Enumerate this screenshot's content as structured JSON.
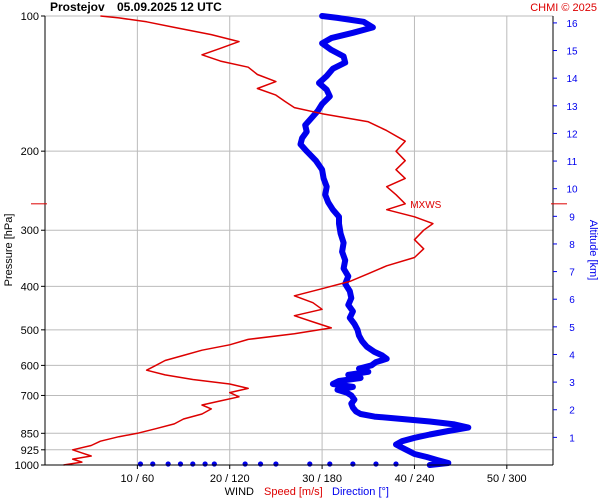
{
  "header": {
    "station": "Prostejov",
    "datetime": "05.09.2025 12 UTC",
    "credit": "CHMI © 2025"
  },
  "chart_data": {
    "type": "line",
    "title": "Prostejov   05.09.2025 12 UTC",
    "ylabel_left": "Pressure [hPa]",
    "ylabel_right": "Altitude [km]",
    "xlabel": "WIND",
    "xlabel_speed": "Speed [m/s]",
    "xlabel_direction": "Direction [°]",
    "xlim_speed": [
      0,
      55
    ],
    "xlim_direction": [
      0,
      330
    ],
    "x_tick_labels": [
      "10 / 60",
      "20 / 120",
      "30 / 180",
      "40 / 240",
      "50 / 300"
    ],
    "x_ticks_speed": [
      10,
      20,
      30,
      40,
      50
    ],
    "pressure_ticks": [
      100,
      200,
      300,
      400,
      500,
      600,
      700,
      850,
      925,
      1000
    ],
    "pressure_tick_labels": [
      "100",
      "200",
      "300",
      "400",
      "500",
      "600",
      "700",
      "850",
      "925",
      "1000"
    ],
    "pressure_range": [
      100,
      1000
    ],
    "pressure_scale": "log",
    "altitude_ticks": [
      1,
      2,
      3,
      4,
      5,
      6,
      7,
      8,
      9,
      10,
      11,
      12,
      13,
      14,
      15,
      16
    ],
    "altitude_tick_labels": [
      "1",
      "2",
      "3",
      "4",
      "5",
      "6",
      "7",
      "8",
      "9",
      "10",
      "11",
      "12",
      "13",
      "14",
      "15",
      "16"
    ],
    "grid": true,
    "colors": {
      "speed": "#dd0000",
      "direction": "#0000ee",
      "grid": "#bbbbbb",
      "axis": "#000000"
    },
    "annotation": {
      "text": "MXWS",
      "pressure": 262,
      "speed": 39
    },
    "speed_profile": [
      {
        "p": 1000,
        "v": 2
      },
      {
        "p": 985,
        "v": 4
      },
      {
        "p": 970,
        "v": 3
      },
      {
        "p": 955,
        "v": 5
      },
      {
        "p": 940,
        "v": 4
      },
      {
        "p": 925,
        "v": 3
      },
      {
        "p": 905,
        "v": 5
      },
      {
        "p": 885,
        "v": 6
      },
      {
        "p": 865,
        "v": 8
      },
      {
        "p": 850,
        "v": 10
      },
      {
        "p": 830,
        "v": 12
      },
      {
        "p": 810,
        "v": 14
      },
      {
        "p": 790,
        "v": 15
      },
      {
        "p": 770,
        "v": 17
      },
      {
        "p": 750,
        "v": 18
      },
      {
        "p": 735,
        "v": 17
      },
      {
        "p": 720,
        "v": 19
      },
      {
        "p": 705,
        "v": 21
      },
      {
        "p": 690,
        "v": 20
      },
      {
        "p": 675,
        "v": 22
      },
      {
        "p": 660,
        "v": 20
      },
      {
        "p": 645,
        "v": 16
      },
      {
        "p": 630,
        "v": 13
      },
      {
        "p": 615,
        "v": 11
      },
      {
        "p": 600,
        "v": 12
      },
      {
        "p": 585,
        "v": 13
      },
      {
        "p": 570,
        "v": 15
      },
      {
        "p": 555,
        "v": 17
      },
      {
        "p": 540,
        "v": 20
      },
      {
        "p": 525,
        "v": 22
      },
      {
        "p": 510,
        "v": 27
      },
      {
        "p": 495,
        "v": 31
      },
      {
        "p": 480,
        "v": 29
      },
      {
        "p": 465,
        "v": 27
      },
      {
        "p": 450,
        "v": 30
      },
      {
        "p": 435,
        "v": 29
      },
      {
        "p": 420,
        "v": 27
      },
      {
        "p": 405,
        "v": 30
      },
      {
        "p": 390,
        "v": 33
      },
      {
        "p": 375,
        "v": 35
      },
      {
        "p": 360,
        "v": 37
      },
      {
        "p": 345,
        "v": 40
      },
      {
        "p": 330,
        "v": 41
      },
      {
        "p": 315,
        "v": 40
      },
      {
        "p": 300,
        "v": 41
      },
      {
        "p": 290,
        "v": 42
      },
      {
        "p": 280,
        "v": 40
      },
      {
        "p": 270,
        "v": 37
      },
      {
        "p": 262,
        "v": 39
      },
      {
        "p": 250,
        "v": 38
      },
      {
        "p": 240,
        "v": 37
      },
      {
        "p": 230,
        "v": 39
      },
      {
        "p": 220,
        "v": 38
      },
      {
        "p": 210,
        "v": 39
      },
      {
        "p": 200,
        "v": 38
      },
      {
        "p": 190,
        "v": 39
      },
      {
        "p": 180,
        "v": 37
      },
      {
        "p": 172,
        "v": 35
      },
      {
        "p": 165,
        "v": 30
      },
      {
        "p": 160,
        "v": 27
      },
      {
        "p": 155,
        "v": 26
      },
      {
        "p": 150,
        "v": 25
      },
      {
        "p": 145,
        "v": 23
      },
      {
        "p": 140,
        "v": 25
      },
      {
        "p": 135,
        "v": 23
      },
      {
        "p": 130,
        "v": 22
      },
      {
        "p": 126,
        "v": 19
      },
      {
        "p": 122,
        "v": 17
      },
      {
        "p": 118,
        "v": 19
      },
      {
        "p": 114,
        "v": 21
      },
      {
        "p": 110,
        "v": 18
      },
      {
        "p": 106,
        "v": 14
      },
      {
        "p": 103,
        "v": 11
      },
      {
        "p": 101,
        "v": 8
      },
      {
        "p": 100,
        "v": 6
      }
    ],
    "direction_profile": [
      {
        "p": 1000,
        "d": 250
      },
      {
        "p": 990,
        "d": 262
      },
      {
        "p": 975,
        "d": 255
      },
      {
        "p": 960,
        "d": 248
      },
      {
        "p": 945,
        "d": 240
      },
      {
        "p": 930,
        "d": 236
      },
      {
        "p": 915,
        "d": 232
      },
      {
        "p": 900,
        "d": 228
      },
      {
        "p": 885,
        "d": 232
      },
      {
        "p": 870,
        "d": 240
      },
      {
        "p": 855,
        "d": 250
      },
      {
        "p": 840,
        "d": 262
      },
      {
        "p": 825,
        "d": 275
      },
      {
        "p": 812,
        "d": 266
      },
      {
        "p": 800,
        "d": 250
      },
      {
        "p": 790,
        "d": 232
      },
      {
        "p": 780,
        "d": 214
      },
      {
        "p": 770,
        "d": 205
      },
      {
        "p": 760,
        "d": 202
      },
      {
        "p": 745,
        "d": 200
      },
      {
        "p": 730,
        "d": 199
      },
      {
        "p": 715,
        "d": 201
      },
      {
        "p": 700,
        "d": 199
      },
      {
        "p": 690,
        "d": 196
      },
      {
        "p": 680,
        "d": 190
      },
      {
        "p": 670,
        "d": 200
      },
      {
        "p": 660,
        "d": 187
      },
      {
        "p": 650,
        "d": 191
      },
      {
        "p": 640,
        "d": 205
      },
      {
        "p": 630,
        "d": 197
      },
      {
        "p": 620,
        "d": 210
      },
      {
        "p": 610,
        "d": 204
      },
      {
        "p": 600,
        "d": 212
      },
      {
        "p": 590,
        "d": 215
      },
      {
        "p": 580,
        "d": 222
      },
      {
        "p": 570,
        "d": 219
      },
      {
        "p": 560,
        "d": 214
      },
      {
        "p": 545,
        "d": 209
      },
      {
        "p": 530,
        "d": 206
      },
      {
        "p": 515,
        "d": 204
      },
      {
        "p": 500,
        "d": 203
      },
      {
        "p": 485,
        "d": 201
      },
      {
        "p": 470,
        "d": 198
      },
      {
        "p": 455,
        "d": 200
      },
      {
        "p": 440,
        "d": 197
      },
      {
        "p": 425,
        "d": 199
      },
      {
        "p": 410,
        "d": 198
      },
      {
        "p": 395,
        "d": 195
      },
      {
        "p": 380,
        "d": 197
      },
      {
        "p": 365,
        "d": 194
      },
      {
        "p": 350,
        "d": 195
      },
      {
        "p": 335,
        "d": 193
      },
      {
        "p": 320,
        "d": 194
      },
      {
        "p": 305,
        "d": 192
      },
      {
        "p": 290,
        "d": 191
      },
      {
        "p": 280,
        "d": 191
      },
      {
        "p": 270,
        "d": 187
      },
      {
        "p": 260,
        "d": 184
      },
      {
        "p": 250,
        "d": 182
      },
      {
        "p": 240,
        "d": 183
      },
      {
        "p": 230,
        "d": 181
      },
      {
        "p": 220,
        "d": 180
      },
      {
        "p": 210,
        "d": 176
      },
      {
        "p": 200,
        "d": 170
      },
      {
        "p": 193,
        "d": 166
      },
      {
        "p": 187,
        "d": 167
      },
      {
        "p": 181,
        "d": 170
      },
      {
        "p": 175,
        "d": 169
      },
      {
        "p": 169,
        "d": 173
      },
      {
        "p": 163,
        "d": 177
      },
      {
        "p": 157,
        "d": 180
      },
      {
        "p": 151,
        "d": 185
      },
      {
        "p": 146,
        "d": 183
      },
      {
        "p": 141,
        "d": 178
      },
      {
        "p": 136,
        "d": 183
      },
      {
        "p": 131,
        "d": 187
      },
      {
        "p": 127,
        "d": 195
      },
      {
        "p": 123,
        "d": 194
      },
      {
        "p": 119,
        "d": 186
      },
      {
        "p": 115,
        "d": 180
      },
      {
        "p": 112,
        "d": 186
      },
      {
        "p": 109,
        "d": 200
      },
      {
        "p": 106,
        "d": 213
      },
      {
        "p": 103,
        "d": 207
      },
      {
        "p": 101,
        "d": 190
      },
      {
        "p": 100,
        "d": 180
      }
    ],
    "surface_dots": [
      {
        "p": 995,
        "d": 62
      },
      {
        "p": 995,
        "d": 70
      },
      {
        "p": 995,
        "d": 80
      },
      {
        "p": 995,
        "d": 88
      },
      {
        "p": 995,
        "d": 96
      },
      {
        "p": 995,
        "d": 104
      },
      {
        "p": 995,
        "d": 110
      },
      {
        "p": 995,
        "d": 130
      },
      {
        "p": 995,
        "d": 140
      },
      {
        "p": 995,
        "d": 150
      },
      {
        "p": 995,
        "d": 172
      },
      {
        "p": 995,
        "d": 185
      },
      {
        "p": 995,
        "d": 200
      },
      {
        "p": 995,
        "d": 215
      },
      {
        "p": 995,
        "d": 228
      }
    ]
  }
}
